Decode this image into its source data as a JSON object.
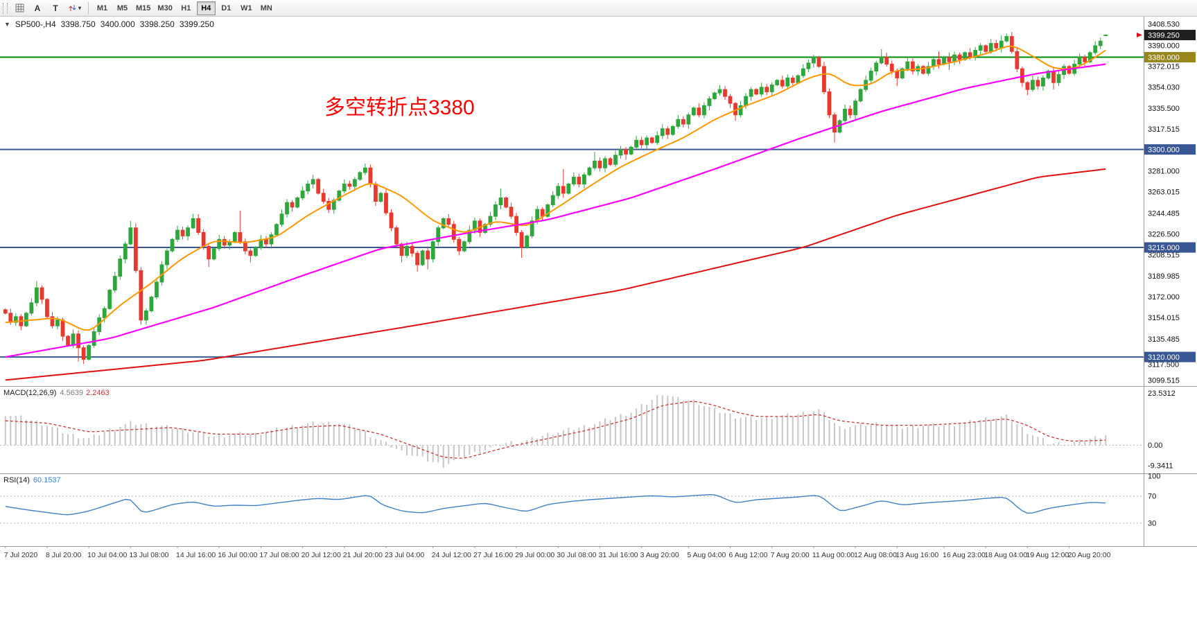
{
  "toolbar": {
    "buttons": [
      {
        "label": "A"
      },
      {
        "label": "T"
      }
    ],
    "timeframes": [
      "M1",
      "M5",
      "M15",
      "M30",
      "H1",
      "H4",
      "D1",
      "W1",
      "MN"
    ],
    "active_timeframe": "H4"
  },
  "chart_header": {
    "collapse_icon": "▼",
    "symbol_period": "SP500-,H4",
    "open": "3398.750",
    "high": "3400.000",
    "low": "3398.250",
    "close": "3399.250"
  },
  "annotation": {
    "text": "多空转折点3380",
    "color": "#ff0000"
  },
  "indicators": {
    "macd": {
      "label": "MACD(12,26,9)",
      "value_main": "4.5639",
      "value_signal": "2.2463"
    },
    "rsi": {
      "label": "RSI(14)",
      "value": "60.1537"
    }
  },
  "colors": {
    "bull": "#2fa63c",
    "bear": "#e8392f",
    "ma_fast": "#ff9800",
    "ma_mid": "#ff00ff",
    "ma_slow": "#e01010",
    "hline_green": "#008c00",
    "hline_blue": "#3a5795",
    "badge_current_bg": "#1f1f1f",
    "badge_gold_bg": "#97861a",
    "macd_hist": "#c6c6c6",
    "macd_signal": "#cc3333",
    "rsi_line": "#3e81c8",
    "axis_text": "#111111",
    "time_text": "#333333",
    "level_dotted": "#b5b5b5",
    "separator": "#9c9c9c"
  },
  "chart_data": {
    "type": "candlestick",
    "symbol": "SP500-",
    "timeframe": "H4",
    "current_price": 3399.25,
    "last_ohlc": {
      "open": 3398.75,
      "high": 3400.0,
      "low": 3398.25,
      "close": 3399.25
    },
    "price_badges": [
      {
        "label": "3399.250",
        "price": 3399.25,
        "bg": "#1f1f1f"
      }
    ],
    "h_lines": [
      {
        "price": 3380.0,
        "label": "3380.000",
        "color": "#008c00",
        "badge_bg": "#97861a"
      },
      {
        "price": 3300.0,
        "label": "3300.000",
        "color": "#3a5795",
        "badge_bg": "#3a5795"
      },
      {
        "price": 3215.0,
        "label": "3215.000",
        "color": "#3a5795",
        "badge_bg": "#3a5795"
      },
      {
        "price": 3120.0,
        "label": "3120.000",
        "color": "#3a5795",
        "badge_bg": "#3a5795"
      }
    ],
    "y_ticks": [
      {
        "label": "3408.530",
        "price": 3408.53
      },
      {
        "label": "3390.000",
        "price": 3390.0
      },
      {
        "label": "3372.015",
        "price": 3372.015
      },
      {
        "label": "3354.030",
        "price": 3354.03
      },
      {
        "label": "3335.500",
        "price": 3335.5
      },
      {
        "label": "3317.515",
        "price": 3317.515
      },
      {
        "label": "3281.000",
        "price": 3281.0
      },
      {
        "label": "3263.015",
        "price": 3263.015
      },
      {
        "label": "3244.485",
        "price": 3244.485
      },
      {
        "label": "3226.500",
        "price": 3226.5
      },
      {
        "label": "3208.515",
        "price": 3208.515
      },
      {
        "label": "3189.985",
        "price": 3189.985
      },
      {
        "label": "3172.000",
        "price": 3172.0
      },
      {
        "label": "3154.015",
        "price": 3154.015
      },
      {
        "label": "3135.485",
        "price": 3135.485
      },
      {
        "label": "3117.500",
        "price": 3117.5,
        "dy": 7
      },
      {
        "label": "3099.515",
        "price": 3099.515
      }
    ],
    "time_labels": [
      "7 Jul 2020",
      "8 Jul 20:00",
      "10 Jul 04:00",
      "13 Jul 08:00",
      "14 Jul 16:00",
      "16 Jul 00:00",
      "17 Jul 08:00",
      "20 Jul 12:00",
      "21 Jul 20:00",
      "23 Jul 04:00",
      "24 Jul 12:00",
      "27 Jul 16:00",
      "29 Jul 00:00",
      "30 Jul 08:00",
      "31 Jul 16:00",
      "3 Aug 20:00",
      "5 Aug 04:00",
      "6 Aug 12:00",
      "7 Aug 20:00",
      "11 Aug 00:00",
      "12 Aug 08:00",
      "13 Aug 16:00",
      "16 Aug 23:00",
      "18 Aug 04:00",
      "19 Aug 12:00",
      "20 Aug 20:00"
    ],
    "closes": [
      3158,
      3150,
      3155,
      3147,
      3158,
      3167,
      3180,
      3170,
      3155,
      3147,
      3152,
      3138,
      3130,
      3140,
      3128,
      3118,
      3130,
      3142,
      3154,
      3162,
      3178,
      3190,
      3205,
      3218,
      3232,
      3195,
      3152,
      3160,
      3172,
      3185,
      3200,
      3212,
      3222,
      3230,
      3225,
      3232,
      3240,
      3228,
      3216,
      3205,
      3214,
      3222,
      3217,
      3220,
      3228,
      3220,
      3212,
      3208,
      3215,
      3222,
      3218,
      3226,
      3235,
      3244,
      3254,
      3250,
      3258,
      3264,
      3270,
      3274,
      3262,
      3255,
      3248,
      3256,
      3264,
      3270,
      3268,
      3274,
      3280,
      3284,
      3270,
      3255,
      3262,
      3245,
      3232,
      3218,
      3208,
      3216,
      3210,
      3200,
      3212,
      3205,
      3220,
      3232,
      3240,
      3235,
      3222,
      3212,
      3220,
      3230,
      3238,
      3228,
      3235,
      3242,
      3252,
      3258,
      3250,
      3242,
      3228,
      3215,
      3225,
      3238,
      3248,
      3242,
      3252,
      3260,
      3268,
      3262,
      3270,
      3276,
      3270,
      3278,
      3284,
      3290,
      3284,
      3292,
      3287,
      3295,
      3300,
      3296,
      3302,
      3308,
      3304,
      3310,
      3306,
      3312,
      3318,
      3313,
      3320,
      3326,
      3322,
      3330,
      3336,
      3330,
      3338,
      3344,
      3349,
      3352,
      3346,
      3340,
      3330,
      3338,
      3346,
      3352,
      3348,
      3354,
      3350,
      3356,
      3360,
      3355,
      3362,
      3358,
      3364,
      3370,
      3375,
      3380,
      3372,
      3350,
      3330,
      3315,
      3325,
      3335,
      3330,
      3342,
      3352,
      3360,
      3368,
      3375,
      3380,
      3374,
      3368,
      3362,
      3370,
      3376,
      3368,
      3372,
      3366,
      3372,
      3378,
      3374,
      3380,
      3376,
      3382,
      3378,
      3384,
      3380,
      3386,
      3390,
      3385,
      3392,
      3388,
      3394,
      3398,
      3385,
      3370,
      3358,
      3352,
      3360,
      3355,
      3362,
      3368,
      3358,
      3365,
      3372,
      3366,
      3374,
      3380,
      3376,
      3384,
      3390,
      3394,
      3399.25
    ],
    "spike_highs": {
      "6": 3186,
      "24": 3238,
      "36": 3244,
      "45": 3247,
      "59": 3278,
      "69": 3288,
      "95": 3266,
      "107": 3283,
      "113": 3298,
      "126": 3322,
      "155": 3382,
      "168": 3387,
      "179": 3385,
      "191": 3399,
      "192": 3400.5,
      "211": 3400
    },
    "spike_lows": {
      "14": 3116,
      "15": 3114,
      "26": 3148,
      "39": 3198,
      "47": 3202,
      "76": 3202,
      "79": 3194,
      "81": 3196,
      "99": 3206,
      "119": 3291,
      "140": 3325,
      "159": 3306,
      "171": 3355,
      "181": 3369,
      "196": 3347,
      "201": 3352
    },
    "moving_averages": {
      "fast_orange": [
        [
          0,
          3150
        ],
        [
          10,
          3154
        ],
        [
          16,
          3141
        ],
        [
          22,
          3165
        ],
        [
          28,
          3184
        ],
        [
          34,
          3206
        ],
        [
          40,
          3221
        ],
        [
          46,
          3219
        ],
        [
          52,
          3224
        ],
        [
          58,
          3243
        ],
        [
          64,
          3258
        ],
        [
          70,
          3272
        ],
        [
          76,
          3260
        ],
        [
          82,
          3238
        ],
        [
          88,
          3227
        ],
        [
          94,
          3238
        ],
        [
          100,
          3233
        ],
        [
          106,
          3250
        ],
        [
          112,
          3268
        ],
        [
          118,
          3285
        ],
        [
          124,
          3298
        ],
        [
          130,
          3310
        ],
        [
          136,
          3326
        ],
        [
          142,
          3338
        ],
        [
          148,
          3348
        ],
        [
          154,
          3362
        ],
        [
          158,
          3367
        ],
        [
          162,
          3355
        ],
        [
          166,
          3356
        ],
        [
          170,
          3368
        ],
        [
          176,
          3370
        ],
        [
          182,
          3376
        ],
        [
          188,
          3383
        ],
        [
          193,
          3391
        ],
        [
          197,
          3381
        ],
        [
          201,
          3370
        ],
        [
          205,
          3370
        ],
        [
          208,
          3377
        ],
        [
          211,
          3386
        ]
      ],
      "mid_magenta": [
        [
          0,
          3120
        ],
        [
          20,
          3136
        ],
        [
          40,
          3163
        ],
        [
          56,
          3189
        ],
        [
          72,
          3214
        ],
        [
          88,
          3227
        ],
        [
          104,
          3239
        ],
        [
          120,
          3258
        ],
        [
          136,
          3283
        ],
        [
          152,
          3309
        ],
        [
          168,
          3333
        ],
        [
          184,
          3353
        ],
        [
          198,
          3366
        ],
        [
          211,
          3374
        ]
      ],
      "slow_red": [
        [
          0,
          3100
        ],
        [
          38,
          3117
        ],
        [
          78,
          3147
        ],
        [
          118,
          3178
        ],
        [
          153,
          3215
        ],
        [
          171,
          3243
        ],
        [
          198,
          3276
        ],
        [
          211,
          3283
        ]
      ]
    },
    "macd": {
      "y_labels": [
        {
          "label": "23.5312",
          "value": 23.5312
        },
        {
          "label": "0.00",
          "value": 0
        },
        {
          "label": "-9.3411",
          "value": -9.3411
        }
      ],
      "histogram": [
        [
          0,
          14
        ],
        [
          4,
          12
        ],
        [
          8,
          9
        ],
        [
          12,
          5
        ],
        [
          16,
          3
        ],
        [
          20,
          7
        ],
        [
          24,
          10
        ],
        [
          28,
          9
        ],
        [
          32,
          8
        ],
        [
          36,
          6
        ],
        [
          40,
          4
        ],
        [
          44,
          5
        ],
        [
          48,
          5
        ],
        [
          52,
          7
        ],
        [
          56,
          9
        ],
        [
          60,
          10
        ],
        [
          64,
          10
        ],
        [
          68,
          7
        ],
        [
          72,
          2
        ],
        [
          76,
          -3
        ],
        [
          80,
          -6
        ],
        [
          84,
          -9.3
        ],
        [
          88,
          -5
        ],
        [
          92,
          -2
        ],
        [
          96,
          1
        ],
        [
          100,
          2
        ],
        [
          104,
          5
        ],
        [
          108,
          7
        ],
        [
          112,
          9
        ],
        [
          116,
          12
        ],
        [
          120,
          15
        ],
        [
          123,
          19
        ],
        [
          126,
          23.5
        ],
        [
          129,
          21
        ],
        [
          132,
          20
        ],
        [
          136,
          16
        ],
        [
          140,
          13
        ],
        [
          144,
          12
        ],
        [
          148,
          13
        ],
        [
          152,
          14
        ],
        [
          156,
          16
        ],
        [
          160,
          8
        ],
        [
          164,
          9
        ],
        [
          168,
          10
        ],
        [
          172,
          8
        ],
        [
          176,
          9
        ],
        [
          180,
          9
        ],
        [
          184,
          10
        ],
        [
          188,
          12
        ],
        [
          192,
          13
        ],
        [
          196,
          6
        ],
        [
          200,
          1
        ],
        [
          204,
          0.5
        ],
        [
          208,
          3
        ],
        [
          211,
          4.56
        ]
      ],
      "signal": [
        [
          0,
          11
        ],
        [
          8,
          10
        ],
        [
          16,
          6
        ],
        [
          24,
          7
        ],
        [
          32,
          8
        ],
        [
          40,
          5
        ],
        [
          48,
          5
        ],
        [
          56,
          8
        ],
        [
          64,
          9
        ],
        [
          72,
          5
        ],
        [
          80,
          -2
        ],
        [
          84,
          -5.5
        ],
        [
          88,
          -6
        ],
        [
          96,
          -1
        ],
        [
          104,
          3
        ],
        [
          112,
          7
        ],
        [
          120,
          12
        ],
        [
          126,
          18
        ],
        [
          132,
          20
        ],
        [
          136,
          18
        ],
        [
          140,
          15
        ],
        [
          144,
          13
        ],
        [
          152,
          13
        ],
        [
          156,
          14
        ],
        [
          160,
          11
        ],
        [
          168,
          9
        ],
        [
          176,
          9
        ],
        [
          184,
          10
        ],
        [
          188,
          11
        ],
        [
          192,
          12
        ],
        [
          196,
          9
        ],
        [
          200,
          4
        ],
        [
          204,
          1.8
        ],
        [
          208,
          2
        ],
        [
          211,
          2.2463
        ]
      ]
    },
    "rsi": {
      "y_labels": [
        {
          "label": "100",
          "value": 100
        },
        {
          "label": "70",
          "value": 70
        },
        {
          "label": "30",
          "value": 30
        }
      ],
      "levels": [
        70,
        30
      ],
      "line": [
        [
          0,
          55
        ],
        [
          4,
          50
        ],
        [
          8,
          46
        ],
        [
          12,
          42
        ],
        [
          16,
          48
        ],
        [
          20,
          58
        ],
        [
          24,
          68
        ],
        [
          26,
          45
        ],
        [
          28,
          48
        ],
        [
          32,
          58
        ],
        [
          36,
          62
        ],
        [
          40,
          55
        ],
        [
          44,
          57
        ],
        [
          48,
          56
        ],
        [
          52,
          60
        ],
        [
          56,
          64
        ],
        [
          60,
          67
        ],
        [
          64,
          65
        ],
        [
          68,
          70
        ],
        [
          70,
          72
        ],
        [
          72,
          58
        ],
        [
          76,
          48
        ],
        [
          80,
          45
        ],
        [
          84,
          52
        ],
        [
          88,
          56
        ],
        [
          92,
          60
        ],
        [
          96,
          53
        ],
        [
          100,
          47
        ],
        [
          104,
          58
        ],
        [
          108,
          62
        ],
        [
          112,
          65
        ],
        [
          116,
          67
        ],
        [
          120,
          69
        ],
        [
          124,
          71
        ],
        [
          128,
          69
        ],
        [
          132,
          71
        ],
        [
          136,
          73
        ],
        [
          140,
          60
        ],
        [
          144,
          65
        ],
        [
          148,
          67
        ],
        [
          152,
          69
        ],
        [
          156,
          72
        ],
        [
          158,
          60
        ],
        [
          160,
          47
        ],
        [
          164,
          55
        ],
        [
          168,
          64
        ],
        [
          172,
          57
        ],
        [
          176,
          60
        ],
        [
          180,
          62
        ],
        [
          184,
          64
        ],
        [
          188,
          67
        ],
        [
          192,
          69
        ],
        [
          194,
          54
        ],
        [
          196,
          43
        ],
        [
          200,
          52
        ],
        [
          204,
          57
        ],
        [
          208,
          61
        ],
        [
          211,
          60.15
        ]
      ]
    }
  }
}
